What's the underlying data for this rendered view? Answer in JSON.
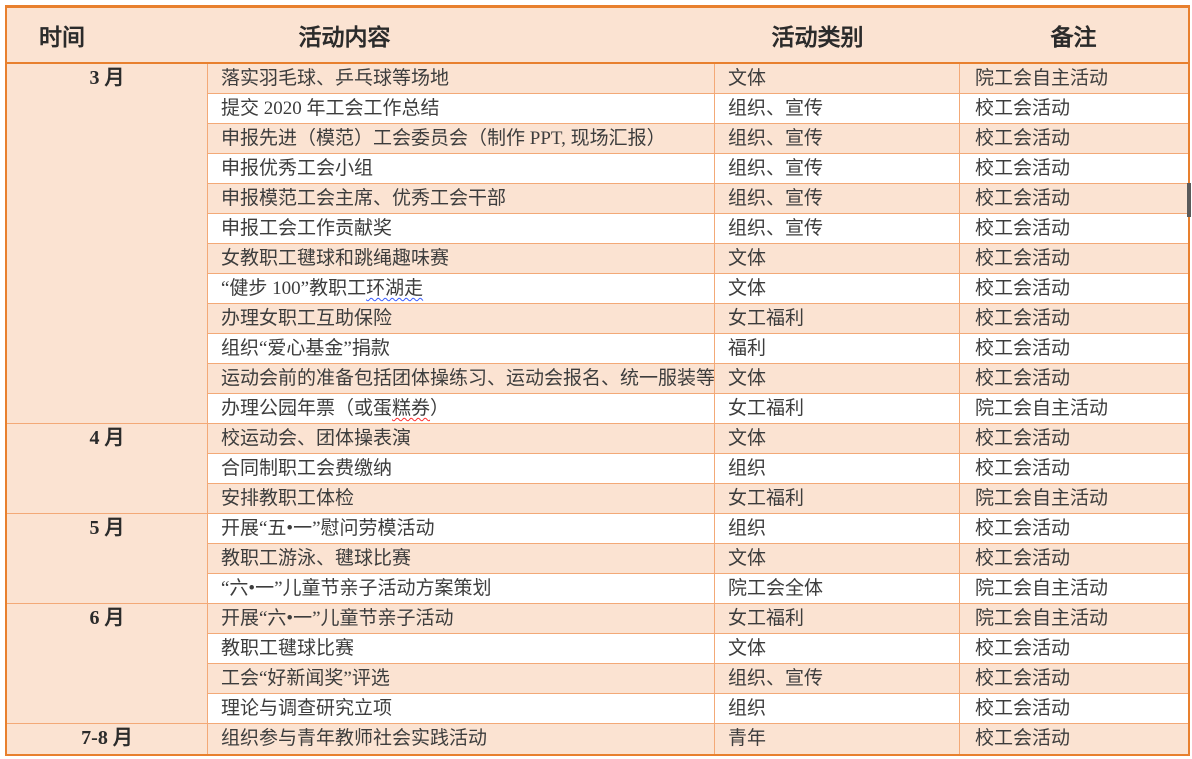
{
  "colors": {
    "band_peach": "#fbe3d2",
    "border_light": "#f3a977",
    "border_strong": "#e8802e",
    "body_text": "#3d3d3d",
    "header_text": "#2b2b2b",
    "squiggle_blue": "#3a5bff",
    "squiggle_red": "#ff2d2d"
  },
  "table": {
    "headers": [
      "时间",
      "活动内容",
      "活动类别",
      "备注"
    ],
    "groups": [
      {
        "month": "3 月",
        "rows": [
          {
            "content": "落实羽毛球、乒乓球等场地",
            "category": "文体",
            "note": "院工会自主活动"
          },
          {
            "content": "提交 2020 年工会工作总结",
            "category": "组织、宣传",
            "note": "校工会活动"
          },
          {
            "content": "申报先进（模范）工会委员会（制作 PPT, 现场汇报）",
            "category": "组织、宣传",
            "note": "校工会活动"
          },
          {
            "content": "申报优秀工会小组",
            "category": "组织、宣传",
            "note": "校工会活动"
          },
          {
            "content": "申报模范工会主席、优秀工会干部",
            "category": "组织、宣传",
            "note": "校工会活动"
          },
          {
            "content": "申报工会工作贡献奖",
            "category": "组织、宣传",
            "note": "校工会活动"
          },
          {
            "content": "女教职工毽球和跳绳趣味赛",
            "category": "文体",
            "note": "校工会活动"
          },
          {
            "content_parts": [
              {
                "text": "“健步 100”教职工"
              },
              {
                "text": "环湖走",
                "squiggle": "blue"
              }
            ],
            "category": "文体",
            "note": "校工会活动"
          },
          {
            "content": "办理女职工互助保险",
            "category": "女工福利",
            "note": "校工会活动"
          },
          {
            "content": "组织“爱心基金”捐款",
            "category": "福利",
            "note": "校工会活动"
          },
          {
            "content": "运动会前的准备包括团体操练习、运动会报名、统一服装等",
            "category": "文体",
            "note": "校工会活动"
          },
          {
            "content_parts": [
              {
                "text": "办理公园年票（或蛋"
              },
              {
                "text": "糕券",
                "squiggle": "red"
              },
              {
                "text": "）"
              }
            ],
            "category": "女工福利",
            "note": "院工会自主活动"
          }
        ]
      },
      {
        "month": "4 月",
        "rows": [
          {
            "content": "校运动会、团体操表演",
            "category": "文体",
            "note": "校工会活动"
          },
          {
            "content": "合同制职工会费缴纳",
            "category": "组织",
            "note": "校工会活动"
          },
          {
            "content": "安排教职工体检",
            "category": "女工福利",
            "note": "院工会自主活动"
          }
        ]
      },
      {
        "month": "5 月",
        "rows": [
          {
            "content": "开展“五•一”慰问劳模活动",
            "category": "组织",
            "note": "校工会活动"
          },
          {
            "content": "教职工游泳、毽球比赛",
            "category": "文体",
            "note": "校工会活动"
          },
          {
            "content": "“六•一”儿童节亲子活动方案策划",
            "category": "院工会全体",
            "note": "院工会自主活动"
          }
        ]
      },
      {
        "month": "6 月",
        "rows": [
          {
            "content": "开展“六•一”儿童节亲子活动",
            "category": "女工福利",
            "note": "院工会自主活动"
          },
          {
            "content": "教职工毽球比赛",
            "category": "文体",
            "note": "校工会活动"
          },
          {
            "content": "工会“好新闻奖”评选",
            "category": "组织、宣传",
            "note": "校工会活动"
          },
          {
            "content": "理论与调查研究立项",
            "category": "组织",
            "note": "校工会活动"
          }
        ]
      },
      {
        "month": "7-8 月",
        "rows": [
          {
            "content": "组织参与青年教师社会实践活动",
            "category": "青年",
            "note": "校工会活动"
          }
        ]
      }
    ]
  }
}
